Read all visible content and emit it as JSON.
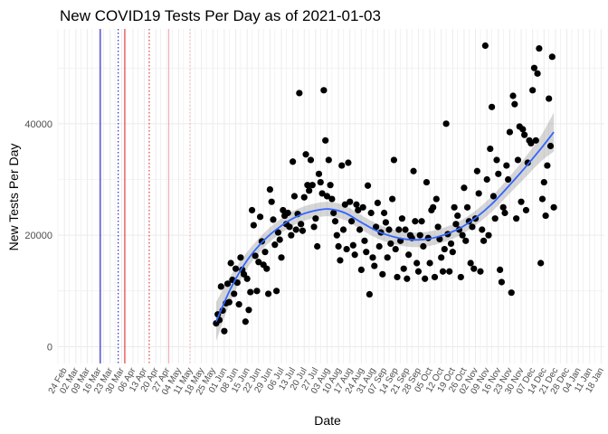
{
  "chart_data": {
    "type": "scatter",
    "title": "New COVID19 Tests Per Day as of 2021-01-03",
    "xlabel": "Date",
    "ylabel": "New Tests Per Day",
    "x_range": [
      "2020-02-20",
      "2021-01-20"
    ],
    "ylim": [
      -3000,
      57000
    ],
    "y_ticks": [
      0,
      20000,
      40000
    ],
    "y_tick_labels": [
      "0",
      "20000",
      "40000"
    ],
    "x_tick_dates": [
      "2020-02-24",
      "2020-03-02",
      "2020-03-09",
      "2020-03-16",
      "2020-03-23",
      "2020-03-30",
      "2020-04-06",
      "2020-04-13",
      "2020-04-20",
      "2020-04-27",
      "2020-05-04",
      "2020-05-11",
      "2020-05-18",
      "2020-05-25",
      "2020-06-01",
      "2020-06-08",
      "2020-06-15",
      "2020-06-22",
      "2020-06-29",
      "2020-07-06",
      "2020-07-13",
      "2020-07-20",
      "2020-07-27",
      "2020-08-03",
      "2020-08-10",
      "2020-08-17",
      "2020-08-24",
      "2020-08-31",
      "2020-09-07",
      "2020-09-14",
      "2020-09-21",
      "2020-09-28",
      "2020-10-05",
      "2020-10-12",
      "2020-10-19",
      "2020-10-26",
      "2020-11-02",
      "2020-11-09",
      "2020-11-16",
      "2020-11-23",
      "2020-11-30",
      "2020-12-07",
      "2020-12-14",
      "2020-12-21",
      "2020-12-28",
      "2021-01-04",
      "2021-01-11",
      "2021-01-18"
    ],
    "x_tick_labels": [
      "24 Feb",
      "02 Mar",
      "09 Mar",
      "16 Mar",
      "23 Mar",
      "30 Mar",
      "06 Apr",
      "13 Apr",
      "20 Apr",
      "27 Apr",
      "04 May",
      "11 May",
      "18 May",
      "25 May",
      "01 Jun",
      "08 Jun",
      "15 Jun",
      "22 Jun",
      "29 Jun",
      "06 Jul",
      "13 Jul",
      "20 Jul",
      "27 Jul",
      "03 Aug",
      "10 Aug",
      "17 Aug",
      "24 Aug",
      "31 Aug",
      "07 Sep",
      "14 Sep",
      "21 Sep",
      "28 Sep",
      "05 Oct",
      "12 Oct",
      "19 Oct",
      "26 Oct",
      "02 Nov",
      "09 Nov",
      "16 Nov",
      "23 Nov",
      "30 Nov",
      "07 Dec",
      "14 Dec",
      "21 Dec",
      "28 Dec",
      "04 Jan",
      "11 Jan",
      "18 Jan"
    ],
    "grid": true,
    "vertical_lines": [
      {
        "date": "2020-03-17",
        "color": "#0000cc",
        "style": "solid"
      },
      {
        "date": "2020-03-28",
        "color": "#0000cc",
        "style": "dotted"
      },
      {
        "date": "2020-04-01",
        "color": "#e31a1c",
        "style": "solid"
      },
      {
        "date": "2020-04-16",
        "color": "#e31a1c",
        "style": "dotted"
      },
      {
        "date": "2020-04-28",
        "color": "#f4a6a6",
        "style": "solid"
      },
      {
        "date": "2020-05-11",
        "color": "#f4a6a6",
        "style": "dotted"
      }
    ],
    "points": [
      [
        "2020-05-27",
        4200
      ],
      [
        "2020-05-28",
        5800
      ],
      [
        "2020-05-29",
        4800
      ],
      [
        "2020-05-30",
        10800
      ],
      [
        "2020-05-31",
        6500
      ],
      [
        "2020-06-01",
        2800
      ],
      [
        "2020-06-02",
        7800
      ],
      [
        "2020-06-03",
        11300
      ],
      [
        "2020-06-04",
        8000
      ],
      [
        "2020-06-05",
        15000
      ],
      [
        "2020-06-06",
        12000
      ],
      [
        "2020-06-07",
        9500
      ],
      [
        "2020-06-08",
        14000
      ],
      [
        "2020-06-09",
        11500
      ],
      [
        "2020-06-10",
        7600
      ],
      [
        "2020-06-11",
        16000
      ],
      [
        "2020-06-12",
        13800
      ],
      [
        "2020-06-13",
        13000
      ],
      [
        "2020-06-14",
        4500
      ],
      [
        "2020-06-15",
        12200
      ],
      [
        "2020-06-16",
        6600
      ],
      [
        "2020-06-17",
        9800
      ],
      [
        "2020-06-18",
        24500
      ],
      [
        "2020-06-19",
        21800
      ],
      [
        "2020-06-20",
        16300
      ],
      [
        "2020-06-21",
        10000
      ],
      [
        "2020-06-22",
        15200
      ],
      [
        "2020-06-23",
        23300
      ],
      [
        "2020-06-24",
        18900
      ],
      [
        "2020-06-25",
        14700
      ],
      [
        "2020-06-26",
        17000
      ],
      [
        "2020-06-27",
        14000
      ],
      [
        "2020-06-28",
        9500
      ],
      [
        "2020-06-29",
        28200
      ],
      [
        "2020-06-30",
        26000
      ],
      [
        "2020-07-01",
        22800
      ],
      [
        "2020-07-02",
        18300
      ],
      [
        "2020-07-03",
        10000
      ],
      [
        "2020-07-04",
        20500
      ],
      [
        "2020-07-05",
        19200
      ],
      [
        "2020-07-06",
        16000
      ],
      [
        "2020-07-07",
        24500
      ],
      [
        "2020-07-08",
        23500
      ],
      [
        "2020-07-09",
        22000
      ],
      [
        "2020-07-10",
        24000
      ],
      [
        "2020-07-11",
        21500
      ],
      [
        "2020-07-12",
        20000
      ],
      [
        "2020-07-13",
        33200
      ],
      [
        "2020-07-14",
        27000
      ],
      [
        "2020-07-15",
        21000
      ],
      [
        "2020-07-16",
        23800
      ],
      [
        "2020-07-17",
        45500
      ],
      [
        "2020-07-18",
        22000
      ],
      [
        "2020-07-19",
        20800
      ],
      [
        "2020-07-20",
        26800
      ],
      [
        "2020-07-21",
        34500
      ],
      [
        "2020-07-22",
        29000
      ],
      [
        "2020-07-23",
        28000
      ],
      [
        "2020-07-24",
        33500
      ],
      [
        "2020-07-25",
        29000
      ],
      [
        "2020-07-26",
        21500
      ],
      [
        "2020-07-27",
        23000
      ],
      [
        "2020-07-28",
        18000
      ],
      [
        "2020-07-29",
        31000
      ],
      [
        "2020-07-30",
        29500
      ],
      [
        "2020-07-31",
        27500
      ],
      [
        "2020-08-01",
        46000
      ],
      [
        "2020-08-02",
        37000
      ],
      [
        "2020-08-03",
        27000
      ],
      [
        "2020-08-04",
        33500
      ],
      [
        "2020-08-05",
        29000
      ],
      [
        "2020-08-06",
        26500
      ],
      [
        "2020-08-07",
        24000
      ],
      [
        "2020-08-08",
        22500
      ],
      [
        "2020-08-09",
        20000
      ],
      [
        "2020-08-10",
        18000
      ],
      [
        "2020-08-11",
        15500
      ],
      [
        "2020-08-12",
        32500
      ],
      [
        "2020-08-13",
        21000
      ],
      [
        "2020-08-14",
        25500
      ],
      [
        "2020-08-15",
        17500
      ],
      [
        "2020-08-16",
        33000
      ],
      [
        "2020-08-17",
        26000
      ],
      [
        "2020-08-18",
        22500
      ],
      [
        "2020-08-19",
        18200
      ],
      [
        "2020-08-20",
        16500
      ],
      [
        "2020-08-21",
        25500
      ],
      [
        "2020-08-22",
        24500
      ],
      [
        "2020-08-23",
        21000
      ],
      [
        "2020-08-24",
        13800
      ],
      [
        "2020-08-25",
        25000
      ],
      [
        "2020-08-26",
        19000
      ],
      [
        "2020-08-27",
        17000
      ],
      [
        "2020-08-28",
        28900
      ],
      [
        "2020-08-29",
        9400
      ],
      [
        "2020-08-30",
        24000
      ],
      [
        "2020-08-31",
        16000
      ],
      [
        "2020-09-01",
        14500
      ],
      [
        "2020-09-02",
        21500
      ],
      [
        "2020-09-03",
        25800
      ],
      [
        "2020-09-04",
        18000
      ],
      [
        "2020-09-05",
        20500
      ],
      [
        "2020-09-06",
        13000
      ],
      [
        "2020-09-07",
        24000
      ],
      [
        "2020-09-08",
        22300
      ],
      [
        "2020-09-09",
        16000
      ],
      [
        "2020-09-10",
        21000
      ],
      [
        "2020-09-11",
        18500
      ],
      [
        "2020-09-12",
        26500
      ],
      [
        "2020-09-13",
        33500
      ],
      [
        "2020-09-14",
        17500
      ],
      [
        "2020-09-15",
        12500
      ],
      [
        "2020-09-16",
        21000
      ],
      [
        "2020-09-17",
        19000
      ],
      [
        "2020-09-18",
        23000
      ],
      [
        "2020-09-19",
        14000
      ],
      [
        "2020-09-20",
        21000
      ],
      [
        "2020-09-21",
        12200
      ],
      [
        "2020-09-22",
        16500
      ],
      [
        "2020-09-23",
        20000
      ],
      [
        "2020-09-24",
        19500
      ],
      [
        "2020-09-25",
        31500
      ],
      [
        "2020-09-26",
        22500
      ],
      [
        "2020-09-27",
        15000
      ],
      [
        "2020-09-28",
        13500
      ],
      [
        "2020-09-29",
        20000
      ],
      [
        "2020-09-30",
        22500
      ],
      [
        "2020-10-01",
        18000
      ],
      [
        "2020-10-02",
        12200
      ],
      [
        "2020-10-03",
        29500
      ],
      [
        "2020-10-04",
        19500
      ],
      [
        "2020-10-05",
        15000
      ],
      [
        "2020-10-06",
        24500
      ],
      [
        "2020-10-07",
        25000
      ],
      [
        "2020-10-08",
        12500
      ],
      [
        "2020-10-09",
        26500
      ],
      [
        "2020-10-10",
        21500
      ],
      [
        "2020-10-11",
        19300
      ],
      [
        "2020-10-12",
        16000
      ],
      [
        "2020-10-13",
        13500
      ],
      [
        "2020-10-14",
        17500
      ],
      [
        "2020-10-15",
        40000
      ],
      [
        "2020-10-16",
        20200
      ],
      [
        "2020-10-17",
        13500
      ],
      [
        "2020-10-18",
        18500
      ],
      [
        "2020-10-19",
        17000
      ],
      [
        "2020-10-20",
        25000
      ],
      [
        "2020-10-21",
        22000
      ],
      [
        "2020-10-22",
        23500
      ],
      [
        "2020-10-23",
        21000
      ],
      [
        "2020-10-24",
        12500
      ],
      [
        "2020-10-25",
        20000
      ],
      [
        "2020-10-26",
        28500
      ],
      [
        "2020-10-27",
        19000
      ],
      [
        "2020-10-28",
        25000
      ],
      [
        "2020-10-29",
        22500
      ],
      [
        "2020-10-30",
        15000
      ],
      [
        "2020-10-31",
        21500
      ],
      [
        "2020-11-01",
        14000
      ],
      [
        "2020-11-02",
        23000
      ],
      [
        "2020-11-03",
        31500
      ],
      [
        "2020-11-04",
        27500
      ],
      [
        "2020-11-05",
        13500
      ],
      [
        "2020-11-06",
        21000
      ],
      [
        "2020-11-07",
        19000
      ],
      [
        "2020-11-08",
        54000
      ],
      [
        "2020-11-09",
        30000
      ],
      [
        "2020-11-10",
        20000
      ],
      [
        "2020-11-11",
        35500
      ],
      [
        "2020-11-12",
        43000
      ],
      [
        "2020-11-13",
        27000
      ],
      [
        "2020-11-14",
        23000
      ],
      [
        "2020-11-15",
        33500
      ],
      [
        "2020-11-16",
        31000
      ],
      [
        "2020-11-17",
        13800
      ],
      [
        "2020-11-18",
        11600
      ],
      [
        "2020-11-19",
        25000
      ],
      [
        "2020-11-20",
        24000
      ],
      [
        "2020-11-21",
        32500
      ],
      [
        "2020-11-22",
        30000
      ],
      [
        "2020-11-23",
        38500
      ],
      [
        "2020-11-24",
        9700
      ],
      [
        "2020-11-25",
        45000
      ],
      [
        "2020-11-26",
        43500
      ],
      [
        "2020-11-27",
        23000
      ],
      [
        "2020-11-28",
        33500
      ],
      [
        "2020-11-29",
        39500
      ],
      [
        "2020-11-30",
        26000
      ],
      [
        "2020-12-01",
        39000
      ],
      [
        "2020-12-02",
        38000
      ],
      [
        "2020-12-03",
        24500
      ],
      [
        "2020-12-04",
        33000
      ],
      [
        "2020-12-05",
        37000
      ],
      [
        "2020-12-06",
        36500
      ],
      [
        "2020-12-07",
        46000
      ],
      [
        "2020-12-08",
        50000
      ],
      [
        "2020-12-09",
        37000
      ],
      [
        "2020-12-10",
        49000
      ],
      [
        "2020-12-11",
        53500
      ],
      [
        "2020-12-12",
        15000
      ],
      [
        "2020-12-13",
        26500
      ],
      [
        "2020-12-14",
        29500
      ],
      [
        "2020-12-15",
        23500
      ],
      [
        "2020-12-16",
        32500
      ],
      [
        "2020-12-17",
        44500
      ],
      [
        "2020-12-18",
        36000
      ],
      [
        "2020-12-19",
        52000
      ],
      [
        "2020-12-20",
        25000
      ]
    ],
    "smooth": {
      "method": "loess",
      "color": "#3366ff",
      "band_color": "#999999",
      "fit": [
        [
          "2020-05-27",
          4500
        ],
        [
          "2020-06-05",
          10500
        ],
        [
          "2020-06-15",
          15500
        ],
        [
          "2020-06-25",
          19000
        ],
        [
          "2020-07-05",
          21500
        ],
        [
          "2020-07-15",
          23300
        ],
        [
          "2020-07-25",
          24300
        ],
        [
          "2020-08-04",
          24700
        ],
        [
          "2020-08-14",
          24000
        ],
        [
          "2020-08-24",
          22300
        ],
        [
          "2020-09-03",
          20700
        ],
        [
          "2020-09-13",
          19700
        ],
        [
          "2020-09-23",
          19200
        ],
        [
          "2020-10-03",
          19300
        ],
        [
          "2020-10-13",
          20000
        ],
        [
          "2020-10-23",
          21200
        ],
        [
          "2020-11-02",
          23100
        ],
        [
          "2020-11-12",
          25600
        ],
        [
          "2020-11-22",
          28700
        ],
        [
          "2020-12-02",
          32000
        ],
        [
          "2020-12-12",
          35500
        ],
        [
          "2020-12-20",
          38500
        ]
      ],
      "upper": [
        [
          "2020-05-27",
          8000
        ],
        [
          "2020-06-05",
          12800
        ],
        [
          "2020-06-15",
          17000
        ],
        [
          "2020-06-25",
          20300
        ],
        [
          "2020-07-05",
          22800
        ],
        [
          "2020-07-15",
          24600
        ],
        [
          "2020-07-25",
          25600
        ],
        [
          "2020-08-04",
          26000
        ],
        [
          "2020-08-14",
          25300
        ],
        [
          "2020-08-24",
          23600
        ],
        [
          "2020-09-03",
          22000
        ],
        [
          "2020-09-13",
          21000
        ],
        [
          "2020-09-23",
          20500
        ],
        [
          "2020-10-03",
          20600
        ],
        [
          "2020-10-13",
          21300
        ],
        [
          "2020-10-23",
          22500
        ],
        [
          "2020-11-02",
          24400
        ],
        [
          "2020-11-12",
          27000
        ],
        [
          "2020-11-22",
          30200
        ],
        [
          "2020-12-02",
          33800
        ],
        [
          "2020-12-12",
          37800
        ],
        [
          "2020-12-20",
          42000
        ]
      ],
      "lower": [
        [
          "2020-05-27",
          1000
        ],
        [
          "2020-06-05",
          8200
        ],
        [
          "2020-06-15",
          14000
        ],
        [
          "2020-06-25",
          17700
        ],
        [
          "2020-07-05",
          20200
        ],
        [
          "2020-07-15",
          22000
        ],
        [
          "2020-07-25",
          23000
        ],
        [
          "2020-08-04",
          23400
        ],
        [
          "2020-08-14",
          22700
        ],
        [
          "2020-08-24",
          21000
        ],
        [
          "2020-09-03",
          19400
        ],
        [
          "2020-09-13",
          18400
        ],
        [
          "2020-09-23",
          17900
        ],
        [
          "2020-10-03",
          18000
        ],
        [
          "2020-10-13",
          18700
        ],
        [
          "2020-10-23",
          19900
        ],
        [
          "2020-11-02",
          21800
        ],
        [
          "2020-11-12",
          24200
        ],
        [
          "2020-11-22",
          27200
        ],
        [
          "2020-12-02",
          30200
        ],
        [
          "2020-12-12",
          33200
        ],
        [
          "2020-12-20",
          35000
        ]
      ]
    }
  }
}
